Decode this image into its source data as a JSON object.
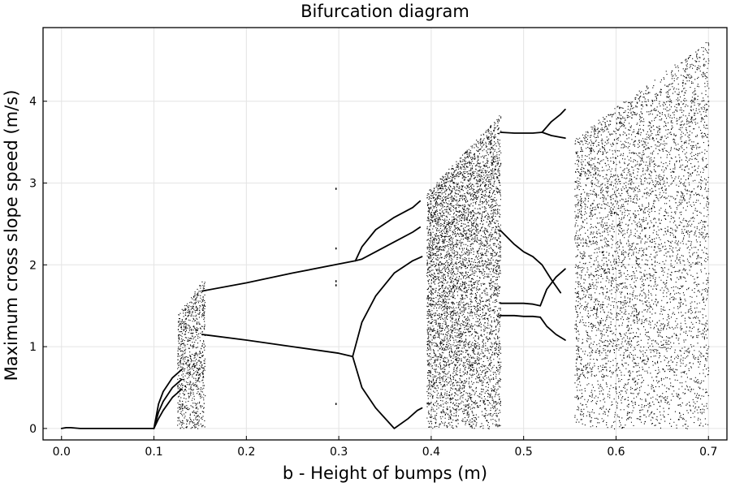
{
  "chart_data": {
    "type": "scatter",
    "title": "Bifurcation diagram",
    "xlabel": "b - Height of bumps (m)",
    "ylabel": "Maximum cross slope speed (m/s)",
    "xlim": [
      -0.02,
      0.72
    ],
    "ylim": [
      -0.14,
      4.9
    ],
    "x_ticks": [
      0.0,
      0.1,
      0.2,
      0.3,
      0.4,
      0.5,
      0.6,
      0.7
    ],
    "x_tick_labels": [
      "0.0",
      "0.1",
      "0.2",
      "0.3",
      "0.4",
      "0.5",
      "0.6",
      "0.7"
    ],
    "y_ticks": [
      0,
      1,
      2,
      3,
      4
    ],
    "y_tick_labels": [
      "0",
      "1",
      "2",
      "3",
      "4"
    ],
    "grid": true,
    "legend": "none",
    "marker_color": "#000000",
    "branches": [
      {
        "x": [
          0.0,
          0.005,
          0.01,
          0.02,
          0.05,
          0.1
        ],
        "y": [
          0.0,
          0.01,
          0.01,
          0.0,
          0.0,
          0.0
        ]
      },
      {
        "x": [
          0.1,
          0.105,
          0.11,
          0.12,
          0.13
        ],
        "y": [
          0.0,
          0.3,
          0.45,
          0.62,
          0.72
        ]
      },
      {
        "x": [
          0.1,
          0.105,
          0.11,
          0.12,
          0.13
        ],
        "y": [
          0.0,
          0.2,
          0.33,
          0.5,
          0.6
        ]
      },
      {
        "x": [
          0.1,
          0.105,
          0.11,
          0.12,
          0.13
        ],
        "y": [
          0.0,
          0.12,
          0.22,
          0.38,
          0.48
        ]
      },
      {
        "x": [
          0.152,
          0.2,
          0.25,
          0.3,
          0.318
        ],
        "y": [
          1.68,
          1.78,
          1.9,
          2.01,
          2.05
        ]
      },
      {
        "x": [
          0.318,
          0.325,
          0.34,
          0.36,
          0.38,
          0.388
        ],
        "y": [
          2.05,
          2.22,
          2.43,
          2.58,
          2.7,
          2.78
        ]
      },
      {
        "x": [
          0.318,
          0.325,
          0.34,
          0.36,
          0.38,
          0.388
        ],
        "y": [
          2.05,
          2.07,
          2.16,
          2.28,
          2.4,
          2.46
        ]
      },
      {
        "x": [
          0.152,
          0.2,
          0.25,
          0.3,
          0.315
        ],
        "y": [
          1.15,
          1.08,
          1.0,
          0.92,
          0.88
        ]
      },
      {
        "x": [
          0.315,
          0.325,
          0.34,
          0.36,
          0.38,
          0.39
        ],
        "y": [
          0.88,
          1.3,
          1.62,
          1.9,
          2.05,
          2.1
        ]
      },
      {
        "x": [
          0.315,
          0.325,
          0.34,
          0.36,
          0.375,
          0.385,
          0.39
        ],
        "y": [
          0.88,
          0.5,
          0.25,
          0.0,
          0.12,
          0.22,
          0.25
        ]
      },
      {
        "x": [
          0.475,
          0.49,
          0.5,
          0.51,
          0.52,
          0.53,
          0.54
        ],
        "y": [
          2.42,
          2.25,
          2.16,
          2.1,
          2.0,
          1.82,
          1.66
        ]
      },
      {
        "x": [
          0.475,
          0.49,
          0.5,
          0.51,
          0.518
        ],
        "y": [
          1.53,
          1.53,
          1.53,
          1.52,
          1.5
        ]
      },
      {
        "x": [
          0.475,
          0.49,
          0.5,
          0.51,
          0.518
        ],
        "y": [
          1.38,
          1.38,
          1.37,
          1.37,
          1.36
        ]
      },
      {
        "x": [
          0.518,
          0.525,
          0.535,
          0.545
        ],
        "y": [
          1.5,
          1.7,
          1.85,
          1.95
        ]
      },
      {
        "x": [
          0.518,
          0.525,
          0.535,
          0.545
        ],
        "y": [
          1.36,
          1.25,
          1.15,
          1.08
        ]
      },
      {
        "x": [
          0.475,
          0.49,
          0.5,
          0.51,
          0.52
        ],
        "y": [
          3.62,
          3.61,
          3.61,
          3.61,
          3.62
        ]
      },
      {
        "x": [
          0.52,
          0.53,
          0.54,
          0.545
        ],
        "y": [
          3.62,
          3.75,
          3.84,
          3.9
        ]
      },
      {
        "x": [
          0.52,
          0.53,
          0.54,
          0.545
        ],
        "y": [
          3.62,
          3.58,
          3.56,
          3.55
        ]
      }
    ],
    "scatter_regions": [
      {
        "x": [
          0.125,
          0.155
        ],
        "y": [
          0.0,
          1.85
        ],
        "points": 900
      },
      {
        "x": [
          0.395,
          0.475
        ],
        "y": [
          0.0,
          3.85
        ],
        "points": 5200
      },
      {
        "x": [
          0.555,
          0.7
        ],
        "y": [
          0.0,
          4.75
        ],
        "points": 11000
      }
    ],
    "isolated_points": [
      {
        "x": 0.297,
        "y": 2.93
      },
      {
        "x": 0.297,
        "y": 2.2
      },
      {
        "x": 0.297,
        "y": 1.8
      },
      {
        "x": 0.297,
        "y": 1.75
      },
      {
        "x": 0.297,
        "y": 0.3
      }
    ]
  }
}
